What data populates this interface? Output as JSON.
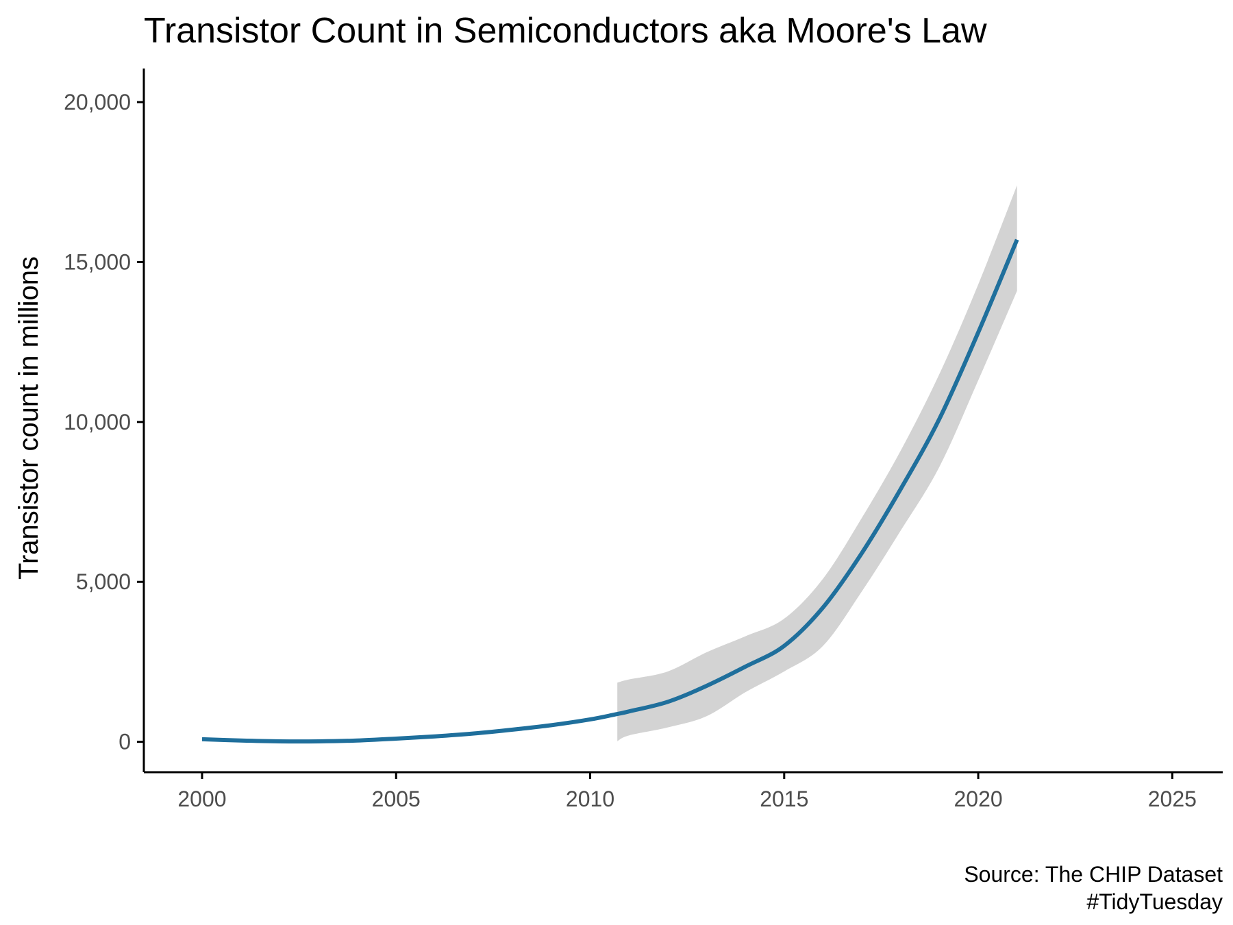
{
  "chart_data": {
    "type": "line",
    "title": "Transistor Count in Semiconductors aka Moore's Law",
    "xlabel": "",
    "ylabel": "Transistor count in millions",
    "caption": [
      "Source: The CHIP Dataset",
      "#TidyTuesday"
    ],
    "xlim": [
      1998.5,
      2026.3
    ],
    "ylim": [
      -950,
      21050
    ],
    "x_ticks": [
      2000,
      2005,
      2010,
      2015,
      2020,
      2025
    ],
    "x_tick_labels": [
      "2000",
      "2005",
      "2010",
      "2015",
      "2020",
      "2025"
    ],
    "y_ticks": [
      0,
      5000,
      10000,
      15000,
      20000
    ],
    "y_tick_labels": [
      "0",
      "5,000",
      "10,000",
      "15,000",
      "20,000"
    ],
    "grid": false,
    "colors": {
      "line": "#1f6f9c",
      "ribbon": "#d3d3d3",
      "axis": "#000000",
      "tick_label": "#4d4d4d"
    },
    "series": [
      {
        "smooth": {
          "x": [
            2000,
            2001,
            2002,
            2003,
            2004,
            2005,
            2006,
            2007,
            2008,
            2009,
            2010,
            2010.7,
            2011,
            2012,
            2013,
            2014,
            2015,
            2016,
            2017,
            2018,
            2019,
            2020,
            2021
          ],
          "y": [
            80,
            40,
            15,
            15,
            40,
            100,
            170,
            260,
            380,
            520,
            700,
            870,
            950,
            1250,
            1750,
            2350,
            3000,
            4200,
            5900,
            7900,
            10100,
            12800,
            15700
          ]
        },
        "ribbon": {
          "x": [
            2010.7,
            2011,
            2012,
            2013,
            2014,
            2015,
            2016,
            2017,
            2018,
            2019,
            2020,
            2021
          ],
          "lower": [
            20,
            200,
            450,
            800,
            1550,
            2200,
            3000,
            4700,
            6600,
            8600,
            11300,
            14100
          ],
          "upper": [
            1850,
            1950,
            2200,
            2800,
            3300,
            3850,
            5100,
            7000,
            9100,
            11500,
            14300,
            17400
          ]
        }
      }
    ]
  }
}
